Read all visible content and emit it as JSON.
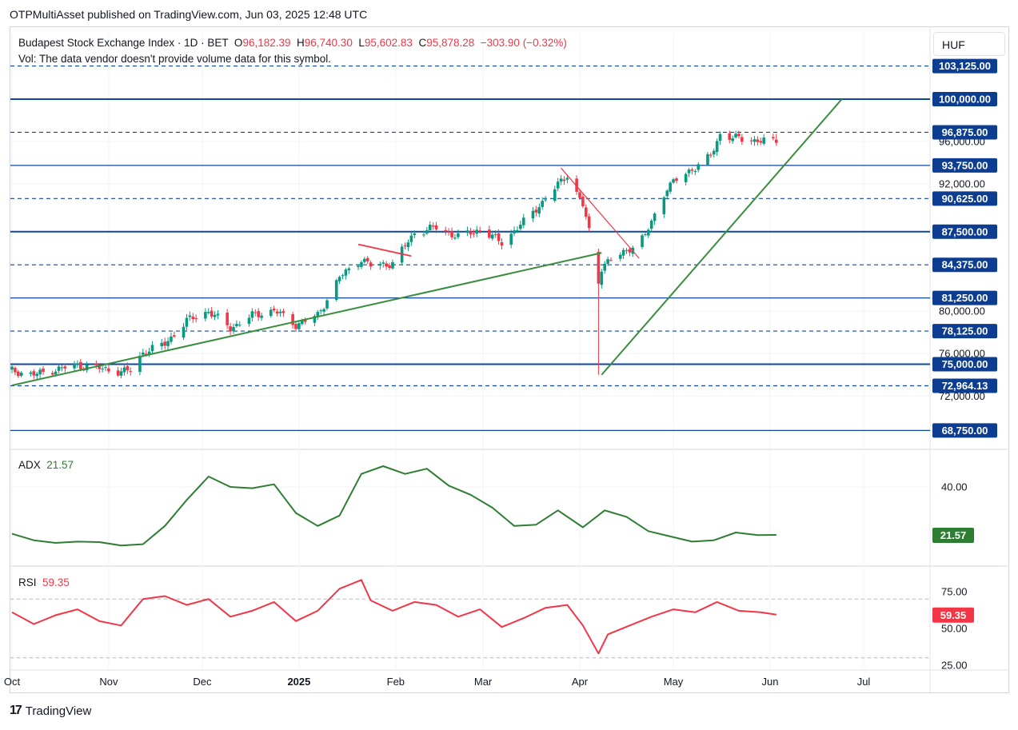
{
  "publisher_line": "OTPMultiAsset published on TradingView.com, Jun 03, 2025 12:48 UTC",
  "legend": {
    "symbol": "Budapest Stock Exchange Index · 1D · BET",
    "open_label": "O",
    "open": "96,182.39",
    "high_label": "H",
    "high": "96,740.30",
    "low_label": "L",
    "low": "95,602.83",
    "close_label": "C",
    "close": "95,878.28",
    "change": "−303.90 (−0.32%)",
    "volume_note": "Vol: The data vendor doesn't provide volume data for this symbol."
  },
  "currency": "HUF",
  "adx_legend": {
    "label": "ADX",
    "value": "21.57"
  },
  "rsi_legend": {
    "label": "RSI",
    "value": "59.35"
  },
  "footer": {
    "brand": "TradingView",
    "logo_mark": "17"
  },
  "colors": {
    "up": "#089981",
    "down": "#f23645",
    "level_line": "#0d47a1",
    "level_badge": "#0d3d91",
    "trendline": "#388e3c",
    "adx": "#2e7d32",
    "rsi": "#f23645"
  },
  "chart_data": [
    {
      "type": "candlestick",
      "title": "Budapest Stock Exchange Index · 1D · BET",
      "x_ticks": [
        "Oct",
        "Nov",
        "Dec",
        "2025",
        "Feb",
        "Mar",
        "Apr",
        "May",
        "Jun",
        "Jul"
      ],
      "y_ticks": [
        "72,000.00",
        "76,000.00",
        "80,000.00",
        "92,000.00",
        "96,000.00"
      ],
      "ylim": [
        67800,
        104200
      ],
      "price_levels": [
        {
          "value": 103125,
          "label": "103,125.00",
          "style": "dashed"
        },
        {
          "value": 100000,
          "label": "100,000.00",
          "style": "solid-bold"
        },
        {
          "value": 96875,
          "label": "96,875.00",
          "style": "dashed"
        },
        {
          "value": 93750,
          "label": "93,750.00",
          "style": "solid"
        },
        {
          "value": 90625,
          "label": "90,625.00",
          "style": "dashed"
        },
        {
          "value": 87500,
          "label": "87,500.00",
          "style": "solid-bold"
        },
        {
          "value": 84375,
          "label": "84,375.00",
          "style": "dashed"
        },
        {
          "value": 81250,
          "label": "81,250.00",
          "style": "solid"
        },
        {
          "value": 78125,
          "label": "78,125.00",
          "style": "dashed"
        },
        {
          "value": 75000,
          "label": "75,000.00",
          "style": "solid-bold"
        },
        {
          "value": 72964.13,
          "label": "72,964.13",
          "style": "dashed"
        },
        {
          "value": 68750,
          "label": "68,750.00",
          "style": "solid"
        }
      ],
      "close_series": [
        [
          "2024-10-01",
          74400
        ],
        [
          "2024-10-08",
          74000
        ],
        [
          "2024-10-15",
          74500
        ],
        [
          "2024-10-22",
          74900
        ],
        [
          "2024-10-29",
          74600
        ],
        [
          "2024-11-05",
          74300
        ],
        [
          "2024-11-08",
          74400
        ],
        [
          "2024-11-12",
          76100
        ],
        [
          "2024-11-19",
          76900
        ],
        [
          "2024-11-26",
          79100
        ],
        [
          "2024-12-03",
          80000
        ],
        [
          "2024-12-10",
          78400
        ],
        [
          "2024-12-17",
          79600
        ],
        [
          "2024-12-24",
          80100
        ],
        [
          "2024-12-31",
          78700
        ],
        [
          "2025-01-07",
          79600
        ],
        [
          "2025-01-14",
          83200
        ],
        [
          "2025-01-21",
          84900
        ],
        [
          "2025-01-24",
          84300
        ],
        [
          "2025-01-31",
          84500
        ],
        [
          "2025-02-07",
          87400
        ],
        [
          "2025-02-14",
          87900
        ],
        [
          "2025-02-21",
          87000
        ],
        [
          "2025-02-28",
          87700
        ],
        [
          "2025-03-07",
          86500
        ],
        [
          "2025-03-14",
          88400
        ],
        [
          "2025-03-21",
          90600
        ],
        [
          "2025-03-28",
          92900
        ],
        [
          "2025-04-02",
          90000
        ],
        [
          "2025-04-07",
          83800
        ],
        [
          "2025-04-09",
          84500
        ],
        [
          "2025-04-15",
          85500
        ],
        [
          "2025-04-22",
          87100
        ],
        [
          "2025-04-29",
          91700
        ],
        [
          "2025-05-06",
          93200
        ],
        [
          "2025-05-13",
          94600
        ],
        [
          "2025-05-16",
          96700
        ],
        [
          "2025-05-23",
          96200
        ],
        [
          "2025-05-30",
          96100
        ],
        [
          "2025-06-03",
          95878.28
        ]
      ],
      "last_candle": {
        "open": 96182.39,
        "high": 96740.3,
        "low": 95602.83,
        "close": 95878.28
      },
      "trendlines": [
        {
          "from": [
            "2024-10-01",
            73000
          ],
          "to": [
            "2025-04-08",
            85500
          ]
        },
        {
          "from": [
            "2025-04-08",
            74000
          ],
          "to": [
            "2025-06-24",
            100000
          ]
        }
      ],
      "grid": true
    },
    {
      "type": "line",
      "title": "ADX",
      "y_ticks": [
        "40.00"
      ],
      "last_value": 21.57,
      "ylim": [
        16,
        52
      ],
      "series": [
        {
          "name": "ADX",
          "values": [
            [
              "2024-10-01",
              22
            ],
            [
              "2024-10-08",
              19.5
            ],
            [
              "2024-10-15",
              18.5
            ],
            [
              "2024-10-22",
              19
            ],
            [
              "2024-10-29",
              18.8
            ],
            [
              "2024-11-05",
              17.5
            ],
            [
              "2024-11-12",
              18
            ],
            [
              "2024-11-19",
              25
            ],
            [
              "2024-11-26",
              35
            ],
            [
              "2024-12-03",
              44
            ],
            [
              "2024-12-10",
              40
            ],
            [
              "2024-12-17",
              39.5
            ],
            [
              "2024-12-24",
              41
            ],
            [
              "2024-12-31",
              30
            ],
            [
              "2025-01-07",
              25
            ],
            [
              "2025-01-14",
              29
            ],
            [
              "2025-01-21",
              45
            ],
            [
              "2025-01-28",
              48
            ],
            [
              "2025-02-04",
              45
            ],
            [
              "2025-02-11",
              47
            ],
            [
              "2025-02-18",
              40.5
            ],
            [
              "2025-02-25",
              37
            ],
            [
              "2025-03-04",
              32
            ],
            [
              "2025-03-11",
              25
            ],
            [
              "2025-03-18",
              25.5
            ],
            [
              "2025-03-25",
              31
            ],
            [
              "2025-04-02",
              24.5
            ],
            [
              "2025-04-09",
              31
            ],
            [
              "2025-04-16",
              28.5
            ],
            [
              "2025-04-23",
              23
            ],
            [
              "2025-04-30",
              21
            ],
            [
              "2025-05-07",
              19
            ],
            [
              "2025-05-14",
              19.5
            ],
            [
              "2025-05-21",
              22.5
            ],
            [
              "2025-05-28",
              21.5
            ],
            [
              "2025-06-03",
              21.57
            ]
          ]
        }
      ],
      "grid": true
    },
    {
      "type": "line",
      "title": "RSI",
      "y_ticks": [
        "75.00",
        "50.00",
        "25.00"
      ],
      "last_value": 59.35,
      "ylim": [
        22,
        90
      ],
      "bands": [
        30,
        70
      ],
      "series": [
        {
          "name": "RSI",
          "values": [
            [
              "2024-10-01",
              61
            ],
            [
              "2024-10-08",
              53
            ],
            [
              "2024-10-15",
              59
            ],
            [
              "2024-10-22",
              63
            ],
            [
              "2024-10-29",
              55
            ],
            [
              "2024-11-05",
              52
            ],
            [
              "2024-11-12",
              70
            ],
            [
              "2024-11-19",
              72
            ],
            [
              "2024-11-26",
              66
            ],
            [
              "2024-12-03",
              70
            ],
            [
              "2024-12-10",
              58
            ],
            [
              "2024-12-17",
              62
            ],
            [
              "2024-12-24",
              68
            ],
            [
              "2024-12-31",
              55
            ],
            [
              "2025-01-07",
              62
            ],
            [
              "2025-01-14",
              77
            ],
            [
              "2025-01-21",
              83
            ],
            [
              "2025-01-24",
              69
            ],
            [
              "2025-01-31",
              62
            ],
            [
              "2025-02-07",
              68
            ],
            [
              "2025-02-14",
              66
            ],
            [
              "2025-02-21",
              58
            ],
            [
              "2025-02-28",
              63
            ],
            [
              "2025-03-07",
              51
            ],
            [
              "2025-03-14",
              57
            ],
            [
              "2025-03-21",
              64
            ],
            [
              "2025-03-28",
              66
            ],
            [
              "2025-04-02",
              52
            ],
            [
              "2025-04-07",
              33
            ],
            [
              "2025-04-10",
              46
            ],
            [
              "2025-04-17",
              52
            ],
            [
              "2025-04-24",
              58
            ],
            [
              "2025-05-01",
              63
            ],
            [
              "2025-05-08",
              61
            ],
            [
              "2025-05-15",
              68
            ],
            [
              "2025-05-22",
              62
            ],
            [
              "2025-05-29",
              61
            ],
            [
              "2025-06-03",
              59.35
            ]
          ]
        }
      ],
      "grid": true
    }
  ]
}
